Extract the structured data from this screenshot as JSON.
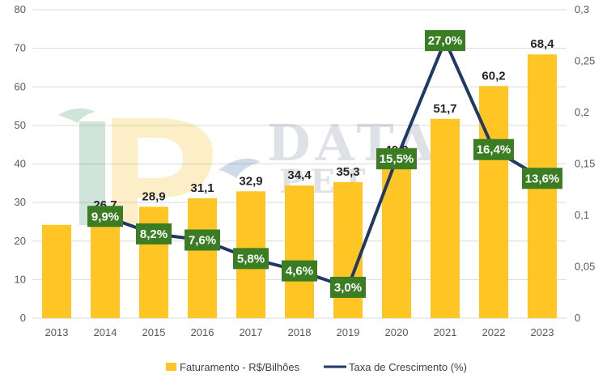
{
  "chart_data": {
    "type": "bar",
    "categories": [
      "2013",
      "2014",
      "2015",
      "2016",
      "2017",
      "2018",
      "2019",
      "2020",
      "2021",
      "2022",
      "2023"
    ],
    "series": [
      {
        "name": "Faturamento - R$/Bilhões",
        "type": "bar",
        "axis": "left",
        "values": [
          24.2,
          26.7,
          28.9,
          31.1,
          32.9,
          34.4,
          35.3,
          40.9,
          51.7,
          60.2,
          68.4
        ],
        "labels": [
          null,
          "26,7",
          "28,9",
          "31,1",
          "32,9",
          "34,4",
          "35,3",
          "40,9",
          "51,7",
          "60,2",
          "68,4"
        ],
        "color": "#FFC524"
      },
      {
        "name": "Taxa de Crescimento (%)",
        "type": "line",
        "axis": "right",
        "values": [
          null,
          0.099,
          0.082,
          0.076,
          0.058,
          0.046,
          0.03,
          0.155,
          0.27,
          0.164,
          0.136
        ],
        "labels": [
          null,
          "9,9%",
          "8,2%",
          "7,6%",
          "5,8%",
          "4,6%",
          "3,0%",
          "15,5%",
          "27,0%",
          "16,4%",
          "13,6%"
        ],
        "color": "#1F3864",
        "label_box_color": "#3A7D22"
      }
    ],
    "y_left": {
      "min": 0,
      "max": 80,
      "ticks": [
        "0",
        "10",
        "20",
        "30",
        "40",
        "50",
        "60",
        "70",
        "80"
      ]
    },
    "y_right": {
      "min": 0,
      "max": 0.3,
      "ticks": [
        "0",
        "0,05",
        "0,1",
        "0,15",
        "0,2",
        "0,25",
        "0,3"
      ]
    },
    "grid": true,
    "legend_position": "bottom",
    "title": "",
    "xlabel": "",
    "ylabel": ""
  },
  "legend": {
    "bar_label": "Faturamento - R$/Bilhões",
    "line_label": "Taxa de Crescimento (%)"
  },
  "watermark": {
    "text_main": "DATA",
    "text_sub": "PET"
  }
}
